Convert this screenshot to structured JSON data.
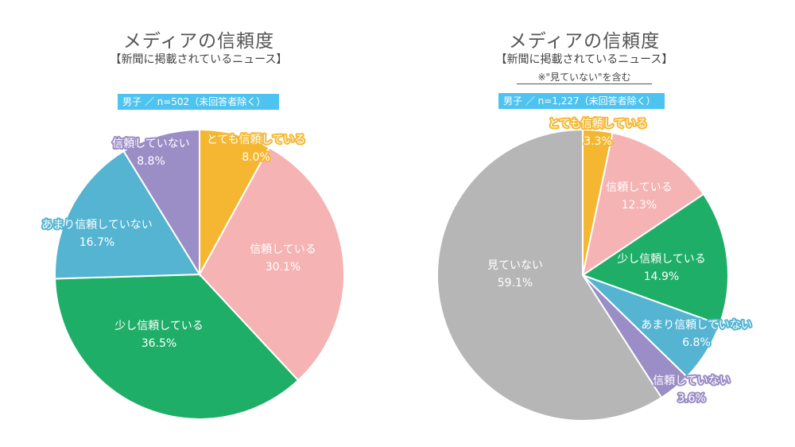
{
  "chart_data": [
    {
      "type": "pie",
      "title": "メディアの信頼度",
      "subtitle": "【新聞に掲載されているニュース】",
      "note": "",
      "sample": "男子 ／ n=502（未回答者除く）",
      "slices": [
        {
          "label": "とても信頼している",
          "value": 8.0,
          "display": "8.0%",
          "color": "#f5b731",
          "text_color": "#ffffff",
          "label_color": "#ffffff",
          "outline": "#f5b731"
        },
        {
          "label": "信頼している",
          "value": 30.1,
          "display": "30.1%",
          "color": "#f5b3b3",
          "text_color": "#ffffff",
          "label_color": "#ffffff",
          "outline": ""
        },
        {
          "label": "少し信頼している",
          "value": 36.5,
          "display": "36.5%",
          "color": "#1fae67",
          "text_color": "#ffffff",
          "label_color": "#ffffff",
          "outline": ""
        },
        {
          "label": "あまり信頼していない",
          "value": 16.7,
          "display": "16.7%",
          "color": "#54b4d2",
          "text_color": "#ffffff",
          "label_color": "#ffffff",
          "outline": "#54b4d2"
        },
        {
          "label": "信頼していない",
          "value": 8.8,
          "display": "8.8%",
          "color": "#9b8dc6",
          "text_color": "#ffffff",
          "label_color": "#ffffff",
          "outline": "#9b8dc6"
        }
      ]
    },
    {
      "type": "pie",
      "title": "メディアの信頼度",
      "subtitle": "【新聞に掲載されているニュース】",
      "note": "※\"見ていない\"を含む",
      "sample": "男子 ／ n=1,227（未回答者除く）",
      "slices": [
        {
          "label": "とても信頼している",
          "value": 3.3,
          "display": "3.3%",
          "color": "#f5b731",
          "text_color": "#ffffff",
          "label_color": "#ffffff",
          "outline": "#f5b731"
        },
        {
          "label": "信頼している",
          "value": 12.3,
          "display": "12.3%",
          "color": "#f5b3b3",
          "text_color": "#ffffff",
          "label_color": "#ffffff",
          "outline": ""
        },
        {
          "label": "少し信頼している",
          "value": 14.9,
          "display": "14.9%",
          "color": "#1fae67",
          "text_color": "#ffffff",
          "label_color": "#ffffff",
          "outline": ""
        },
        {
          "label": "あまり信頼していない",
          "value": 6.8,
          "display": "6.8%",
          "color": "#54b4d2",
          "text_color": "#ffffff",
          "label_color": "#ffffff",
          "outline": "#54b4d2"
        },
        {
          "label": "信頼していない",
          "value": 3.6,
          "display": "3.6%",
          "color": "#9b8dc6",
          "text_color": "#ffffff",
          "label_color": "#ffffff",
          "outline": "#9b8dc6"
        },
        {
          "label": "見ていない",
          "value": 59.1,
          "display": "59.1%",
          "color": "#b6b6b6",
          "text_color": "#ffffff",
          "label_color": "#ffffff",
          "outline": ""
        }
      ]
    }
  ]
}
